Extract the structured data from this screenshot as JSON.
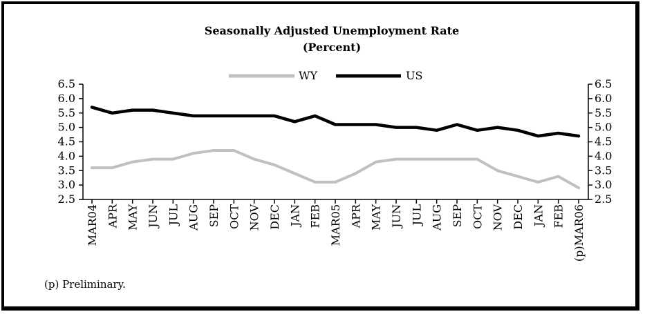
{
  "chart_data": {
    "type": "line",
    "title": "Seasonally Adjusted Unemployment Rate",
    "subtitle": "(Percent)",
    "xlabel": "",
    "ylabel": "",
    "ylim": [
      2.5,
      6.5
    ],
    "yticks": [
      "6.5",
      "6.0",
      "5.5",
      "5.0",
      "4.5",
      "4.0",
      "3.5",
      "3.0",
      "2.5"
    ],
    "categories": [
      "MAR04",
      "APR",
      "MAY",
      "JUN",
      "JUL",
      "AUG",
      "SEP",
      "OCT",
      "NOV",
      "DEC",
      "JAN",
      "FEB",
      "MAR05",
      "APR",
      "MAY",
      "JUN",
      "JUL",
      "AUG",
      "SEP",
      "OCT",
      "NOV",
      "DEC",
      "JAN",
      "FEB",
      "(p)MAR06"
    ],
    "series": [
      {
        "name": "WY",
        "color": "#c0c0c0",
        "values": [
          3.6,
          3.6,
          3.8,
          3.9,
          3.9,
          4.1,
          4.2,
          4.2,
          3.9,
          3.7,
          3.4,
          3.1,
          3.1,
          3.4,
          3.8,
          3.9,
          3.9,
          3.9,
          3.9,
          3.9,
          3.5,
          3.3,
          3.1,
          3.3,
          2.9
        ]
      },
      {
        "name": "US",
        "color": "#000000",
        "values": [
          5.7,
          5.5,
          5.6,
          5.6,
          5.5,
          5.4,
          5.4,
          5.4,
          5.4,
          5.4,
          5.2,
          5.4,
          5.1,
          5.1,
          5.1,
          5.0,
          5.0,
          4.9,
          5.1,
          4.9,
          5.0,
          4.9,
          4.7,
          4.8,
          4.7
        ]
      }
    ],
    "legend_position": "top-center",
    "grid": false,
    "dual_y_axis": true
  },
  "footnote": "(p) Preliminary."
}
